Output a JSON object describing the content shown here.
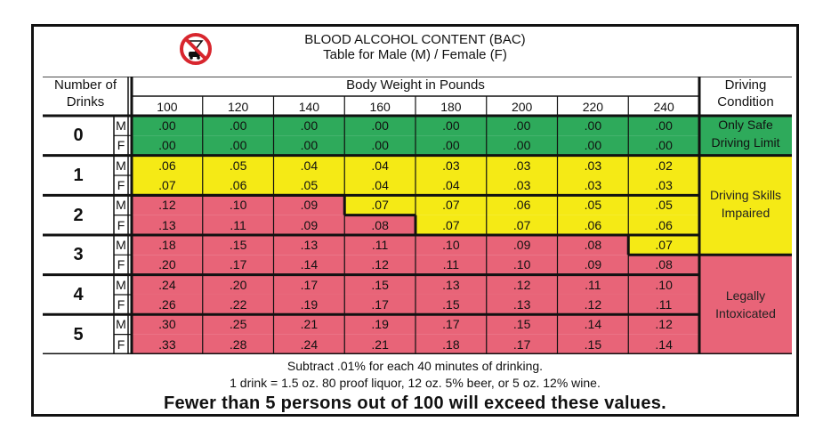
{
  "title": "BLOOD ALCOHOL CONTENT (BAC)",
  "subtitle": "Table for Male (M) / Female (F)",
  "headers": {
    "drinks_line1": "Number of",
    "drinks_line2": "Drinks",
    "weight": "Body Weight in Pounds",
    "condition_line1": "Driving",
    "condition_line2": "Condition"
  },
  "weights": [
    "100",
    "120",
    "140",
    "160",
    "180",
    "200",
    "220",
    "240"
  ],
  "rows": [
    {
      "drinks": "0",
      "sex": "M",
      "values": [
        ".00",
        ".00",
        ".00",
        ".00",
        ".00",
        ".00",
        ".00",
        ".00"
      ]
    },
    {
      "drinks": "0",
      "sex": "F",
      "values": [
        ".00",
        ".00",
        ".00",
        ".00",
        ".00",
        ".00",
        ".00",
        ".00"
      ]
    },
    {
      "drinks": "1",
      "sex": "M",
      "values": [
        ".06",
        ".05",
        ".04",
        ".04",
        ".03",
        ".03",
        ".03",
        ".02"
      ]
    },
    {
      "drinks": "1",
      "sex": "F",
      "values": [
        ".07",
        ".06",
        ".05",
        ".04",
        ".04",
        ".03",
        ".03",
        ".03"
      ]
    },
    {
      "drinks": "2",
      "sex": "M",
      "values": [
        ".12",
        ".10",
        ".09",
        ".07",
        ".07",
        ".06",
        ".05",
        ".05"
      ]
    },
    {
      "drinks": "2",
      "sex": "F",
      "values": [
        ".13",
        ".11",
        ".09",
        ".08",
        ".07",
        ".07",
        ".06",
        ".06"
      ]
    },
    {
      "drinks": "3",
      "sex": "M",
      "values": [
        ".18",
        ".15",
        ".13",
        ".11",
        ".10",
        ".09",
        ".08",
        ".07"
      ]
    },
    {
      "drinks": "3",
      "sex": "F",
      "values": [
        ".20",
        ".17",
        ".14",
        ".12",
        ".11",
        ".10",
        ".09",
        ".08"
      ]
    },
    {
      "drinks": "4",
      "sex": "M",
      "values": [
        ".24",
        ".20",
        ".17",
        ".15",
        ".13",
        ".12",
        ".11",
        ".10"
      ]
    },
    {
      "drinks": "4",
      "sex": "F",
      "values": [
        ".26",
        ".22",
        ".19",
        ".17",
        ".15",
        ".13",
        ".12",
        ".11"
      ]
    },
    {
      "drinks": "5",
      "sex": "M",
      "values": [
        ".30",
        ".25",
        ".21",
        ".19",
        ".17",
        ".15",
        ".14",
        ".12"
      ]
    },
    {
      "drinks": "5",
      "sex": "F",
      "values": [
        ".33",
        ".28",
        ".24",
        ".21",
        ".18",
        ".17",
        ".15",
        ".14"
      ]
    }
  ],
  "zones": [
    {
      "label_line1": "Only Safe",
      "label_line2": "Driving Limit",
      "color": "#2eaa5b",
      "max_bac": 0.0
    },
    {
      "label_line1": "Driving Skills",
      "label_line2": "Impaired",
      "color": "#f5ea15",
      "max_bac": 0.07
    },
    {
      "label_line1": "Legally",
      "label_line2": "Intoxicated",
      "color": "#e86478",
      "min_bac": 0.08
    }
  ],
  "footer": {
    "line1": "Subtract .01% for each 40 minutes of drinking.",
    "line2": "1 drink = 1.5 oz. 80 proof liquor, 12 oz. 5% beer, or 5 oz. 12% wine.",
    "line3": "Fewer than 5 persons out of 100 will exceed these values."
  },
  "icons": {
    "header_icon": "no-drinking-driving-icon"
  }
}
